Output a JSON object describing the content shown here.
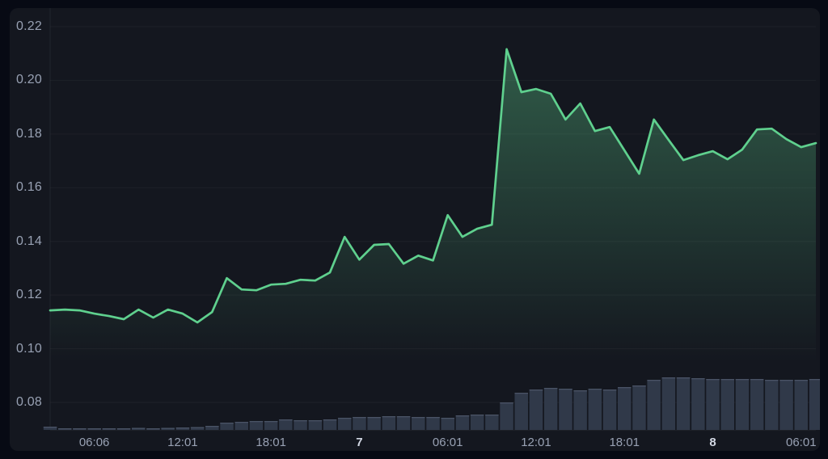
{
  "theme": {
    "outer_background": "#070a14",
    "panel_background": "#14171f",
    "grid_color": "rgba(255,255,255,0.045)",
    "axis_line_color": "rgba(255,255,255,0.06)",
    "axis_text_color": "#98a1b3",
    "axis_text_bold_color": "#d3d8e4",
    "line_color": "#5fd08e",
    "area_fill_color": "#60d08e",
    "volume_bar_color": "#303949",
    "volume_bar_top_color": "#4a5466"
  },
  "chart_data": {
    "type": "area",
    "title": "",
    "xlabel": "",
    "ylabel": "",
    "grid": "horizontal-only",
    "legend": "none",
    "point_interval": "1 hour",
    "series": [
      {
        "name": "price",
        "type": "area-line",
        "color": "#5fd08e",
        "values": [
          0.1143,
          0.1146,
          0.1143,
          0.1131,
          0.1122,
          0.111,
          0.1146,
          0.1116,
          0.1146,
          0.1131,
          0.1098,
          0.1137,
          0.1263,
          0.1221,
          0.1218,
          0.1239,
          0.1242,
          0.1257,
          0.1254,
          0.1284,
          0.1417,
          0.1332,
          0.1387,
          0.139,
          0.1317,
          0.1347,
          0.1329,
          0.1498,
          0.1417,
          0.1447,
          0.1462,
          0.2116,
          0.1956,
          0.1968,
          0.195,
          0.1854,
          0.1914,
          0.1811,
          0.1826,
          0.1739,
          0.1652,
          0.1854,
          0.1778,
          0.1703,
          0.1721,
          0.1736,
          0.1706,
          0.1742,
          0.1817,
          0.182,
          0.1781,
          0.1751,
          0.1766
        ]
      },
      {
        "name": "volume",
        "type": "bar",
        "color": "#303949",
        "units": "relative",
        "values": [
          4,
          2,
          2,
          2,
          2,
          2,
          2.5,
          2,
          2.5,
          3,
          3.5,
          5,
          9,
          10,
          11,
          11,
          13,
          12,
          12,
          13,
          15,
          16,
          16,
          17,
          17,
          16,
          16,
          15,
          18,
          19,
          19,
          34,
          46,
          50,
          52,
          51,
          49,
          51,
          50,
          53,
          55,
          62,
          65,
          65,
          64,
          63,
          63,
          63,
          63,
          62,
          62,
          62,
          63
        ]
      }
    ],
    "y_axis": {
      "tick_labels": [
        "0.22",
        "0.20",
        "0.18",
        "0.16",
        "0.14",
        "0.12",
        "0.10",
        "0.08"
      ],
      "tick_values": [
        0.22,
        0.2,
        0.18,
        0.16,
        0.14,
        0.12,
        0.1,
        0.08
      ],
      "visible_range": [
        0.073,
        0.228
      ]
    },
    "x_axis": {
      "ticks": [
        {
          "label": "06:06",
          "point_index": 3,
          "bold": false
        },
        {
          "label": "12:01",
          "point_index": 9,
          "bold": false
        },
        {
          "label": "18:01",
          "point_index": 15,
          "bold": false
        },
        {
          "label": "7",
          "point_index": 21,
          "bold": true
        },
        {
          "label": "06:01",
          "point_index": 27,
          "bold": false
        },
        {
          "label": "12:01",
          "point_index": 33,
          "bold": false
        },
        {
          "label": "18:01",
          "point_index": 39,
          "bold": false
        },
        {
          "label": "8",
          "point_index": 45,
          "bold": true
        },
        {
          "label": "06:01",
          "point_index": 51,
          "bold": false
        }
      ]
    }
  }
}
